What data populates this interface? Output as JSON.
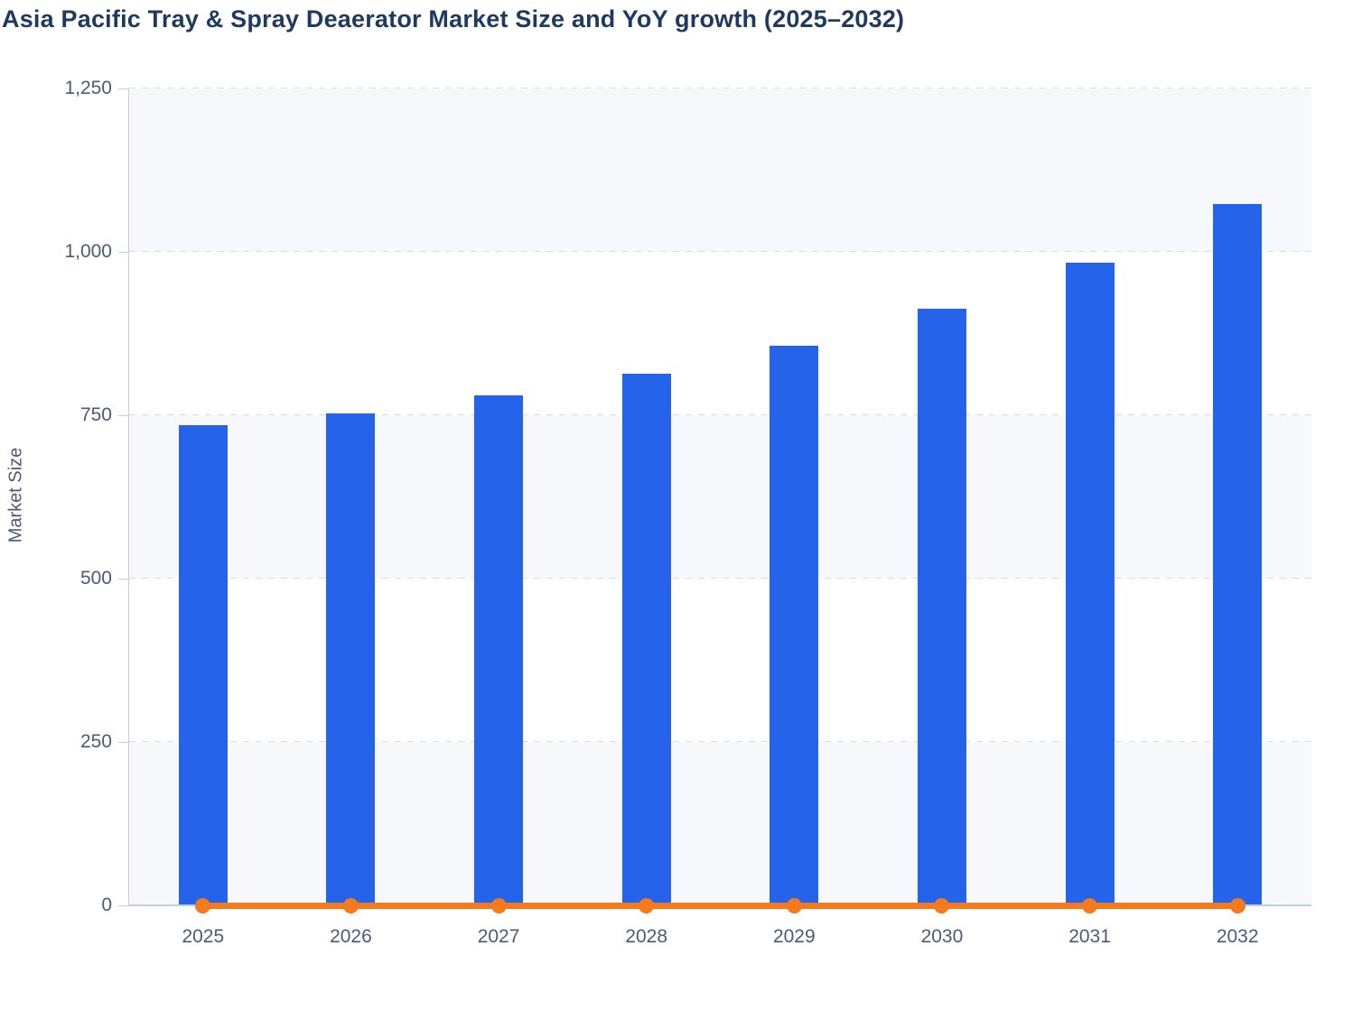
{
  "title": "Asia Pacific Tray & Spray Deaerator Market Size and YoY growth (2025–2032)",
  "colors": {
    "bar_blue": "#2563eb",
    "line_orange": "#f5791d",
    "title_text": "#1e3a5e",
    "axis_text": "#4a5b76",
    "grid": "#d8dce3",
    "band_shade": "#f6f8fb",
    "axis_line": "#c3cde8"
  },
  "chart_data": {
    "type": "bar",
    "title": "Asia Pacific Tray & Spray Deaerator Market Size and YoY growth (2025–2032)",
    "categories": [
      "2025",
      "2026",
      "2027",
      "2028",
      "2029",
      "2030",
      "2031",
      "2032"
    ],
    "series": [
      {
        "name": "Market Size",
        "type": "bar",
        "color": "#2563eb",
        "values": [
          735,
          753,
          780,
          814,
          857,
          913,
          984,
          1073
        ]
      },
      {
        "name": "YoY growth",
        "type": "line",
        "color": "#f5791d",
        "values": [
          0,
          0,
          0,
          0,
          0,
          0,
          0,
          0
        ]
      }
    ],
    "xlabel": "",
    "ylabel": "Market Size",
    "ylim": [
      0,
      1250
    ],
    "yticks": [
      {
        "value": 0,
        "label": "0"
      },
      {
        "value": 250,
        "label": "250"
      },
      {
        "value": 500,
        "label": "500"
      },
      {
        "value": 750,
        "label": "750"
      },
      {
        "value": 1000,
        "label": "1,000"
      },
      {
        "value": 1250,
        "label": "1,250"
      }
    ],
    "grid": "horizontal-dashed",
    "bands": "alternating horizontal shading, shaded from top band",
    "legend": "none"
  }
}
